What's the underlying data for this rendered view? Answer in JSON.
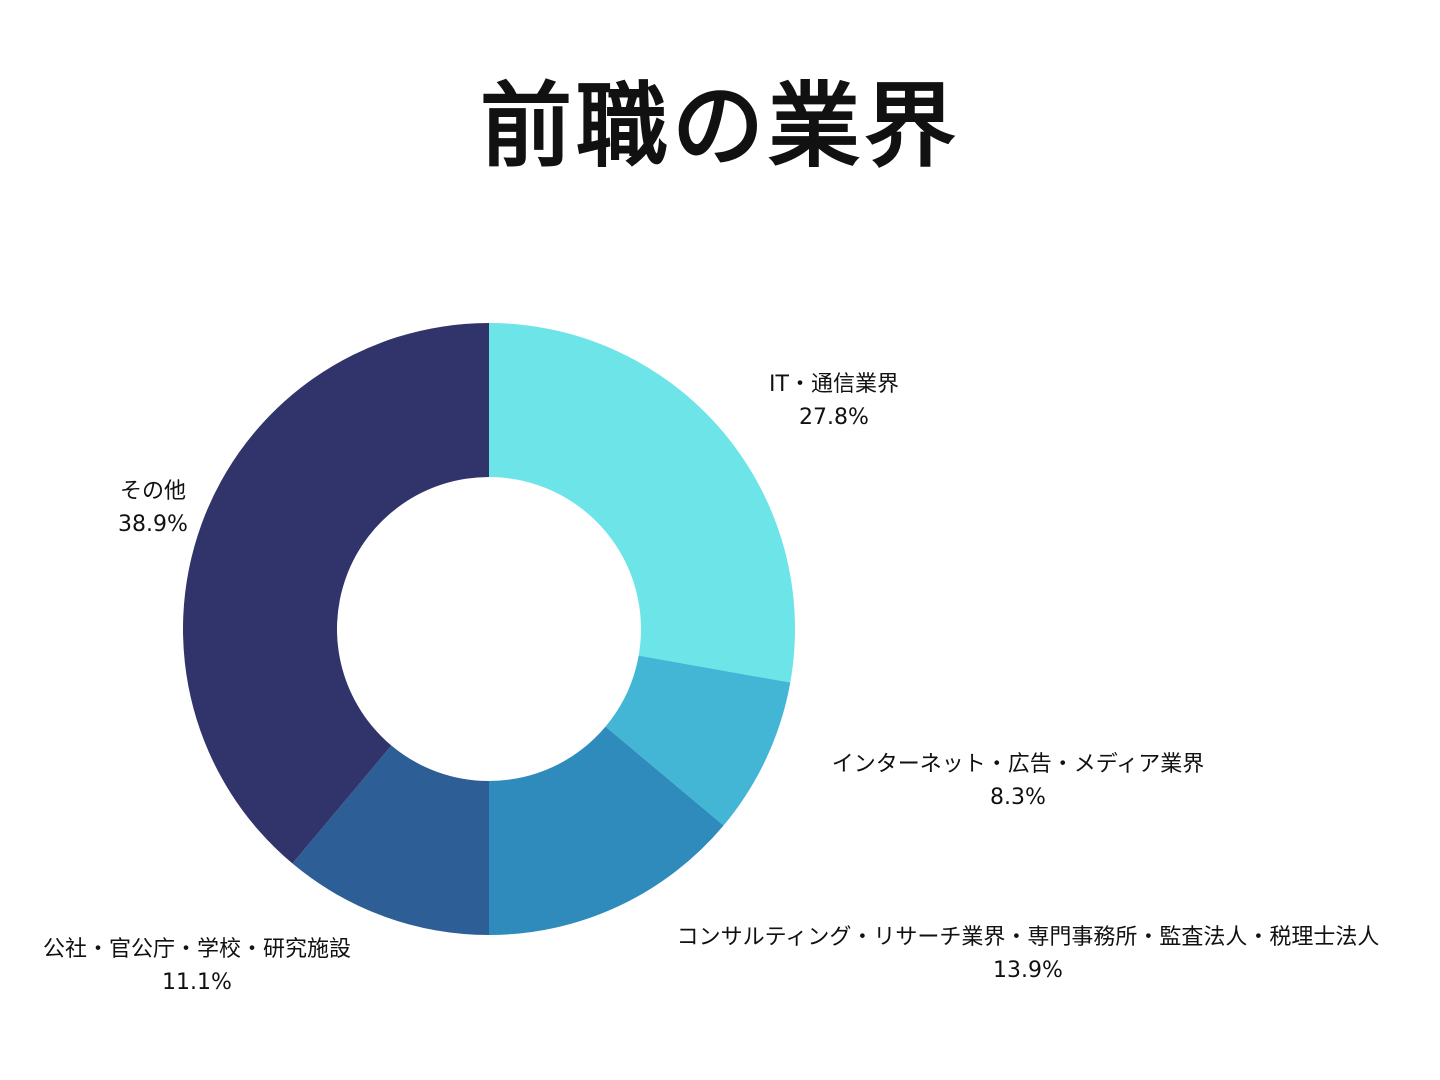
{
  "chart_data": {
    "type": "pie",
    "variant": "donut",
    "title": "前職の業界",
    "slices": [
      {
        "label": "IT・通信業界",
        "value": 27.8,
        "display": "27.8%",
        "color": "#6de4e8"
      },
      {
        "label": "インターネット・広告・メディア業界",
        "value": 8.3,
        "display": "8.3%",
        "color": "#44b6d5"
      },
      {
        "label": "コンサルティング・リサーチ業界・専門事務所・監査法人・税理士法人",
        "value": 13.9,
        "display": "13.9%",
        "color": "#2e8bbb"
      },
      {
        "label": "公社・官公庁・学校・研究施設",
        "value": 11.1,
        "display": "11.1%",
        "color": "#2e5e96"
      },
      {
        "label": "その他",
        "value": 38.9,
        "display": "38.9%",
        "color": "#30346a"
      }
    ],
    "start": "12 o'clock",
    "direction": "clockwise",
    "legend": "none"
  }
}
